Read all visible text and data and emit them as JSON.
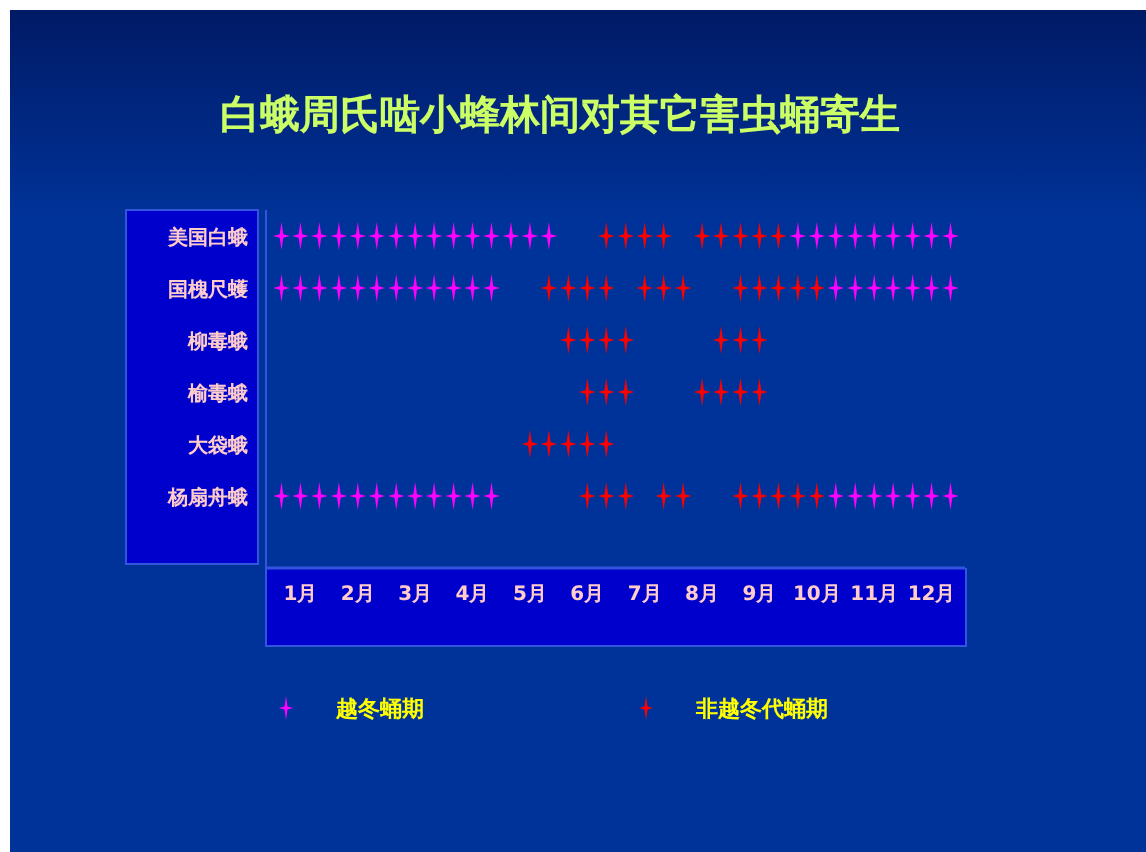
{
  "chart_data": {
    "type": "scatter",
    "orientation": "horizontal",
    "title": "白蛾周氏啮小蜂林间对其它害虫蛹寄生",
    "categories": [
      "美国白蛾",
      "国槐尺蠖",
      "柳毒蛾",
      "榆毒蛾",
      "大袋蛾",
      "杨扇舟蛾"
    ],
    "xlim": [
      0.4,
      12.6
    ],
    "xticks": [
      {
        "value": 1,
        "label": "1月"
      },
      {
        "value": 2,
        "label": "2月"
      },
      {
        "value": 3,
        "label": "3月"
      },
      {
        "value": 4,
        "label": "4月"
      },
      {
        "value": 5,
        "label": "5月"
      },
      {
        "value": 6,
        "label": "6月"
      },
      {
        "value": 7,
        "label": "7月"
      },
      {
        "value": 8,
        "label": "8月"
      },
      {
        "value": 9,
        "label": "9月"
      },
      {
        "value": 10,
        "label": "10月"
      },
      {
        "value": 11,
        "label": "11月"
      },
      {
        "value": 12,
        "label": "12月"
      }
    ],
    "marker": "star",
    "legend": "bottom",
    "series": [
      {
        "name": "越冬蛹期",
        "color": "#ff00ff",
        "values": [
          0.67,
          1,
          1.33,
          1.67,
          2,
          2.33,
          2.67,
          3,
          3.33,
          3.67,
          4,
          4.33,
          4.67,
          5,
          5.33,
          9.67,
          10,
          10.33,
          10.67,
          11,
          11.33,
          11.67,
          12,
          12.33,
          0.67,
          1,
          1.33,
          1.67,
          2,
          2.33,
          2.67,
          3,
          3.33,
          3.67,
          4,
          4.33,
          10.33,
          10.67,
          11,
          11.33,
          11.67,
          12,
          12.33,
          0.67,
          1,
          1.33,
          1.67,
          2,
          2.33,
          2.67,
          3,
          3.33,
          3.67,
          4,
          4.33,
          10.33,
          10.67,
          11,
          11.33,
          11.67,
          12,
          12.33
        ],
        "x": [
          "美国白蛾",
          "美国白蛾",
          "美国白蛾",
          "美国白蛾",
          "美国白蛾",
          "美国白蛾",
          "美国白蛾",
          "美国白蛾",
          "美国白蛾",
          "美国白蛾",
          "美国白蛾",
          "美国白蛾",
          "美国白蛾",
          "美国白蛾",
          "美国白蛾",
          "美国白蛾",
          "美国白蛾",
          "美国白蛾",
          "美国白蛾",
          "美国白蛾",
          "美国白蛾",
          "美国白蛾",
          "美国白蛾",
          "美国白蛾",
          "国槐尺蠖",
          "国槐尺蠖",
          "国槐尺蠖",
          "国槐尺蠖",
          "国槐尺蠖",
          "国槐尺蠖",
          "国槐尺蠖",
          "国槐尺蠖",
          "国槐尺蠖",
          "国槐尺蠖",
          "国槐尺蠖",
          "国槐尺蠖",
          "国槐尺蠖",
          "国槐尺蠖",
          "国槐尺蠖",
          "国槐尺蠖",
          "国槐尺蠖",
          "国槐尺蠖",
          "国槐尺蠖",
          "杨扇舟蛾",
          "杨扇舟蛾",
          "杨扇舟蛾",
          "杨扇舟蛾",
          "杨扇舟蛾",
          "杨扇舟蛾",
          "杨扇舟蛾",
          "杨扇舟蛾",
          "杨扇舟蛾",
          "杨扇舟蛾",
          "杨扇舟蛾",
          "杨扇舟蛾",
          "杨扇舟蛾",
          "杨扇舟蛾",
          "杨扇舟蛾",
          "杨扇舟蛾",
          "杨扇舟蛾",
          "杨扇舟蛾",
          "杨扇舟蛾"
        ]
      },
      {
        "name": "非越冬代蛹期",
        "color": "#ff0000",
        "values": [
          6.33,
          6.67,
          7,
          7.33,
          8,
          8.33,
          8.67,
          9,
          9.33,
          5.33,
          5.67,
          6,
          6.33,
          7,
          7.33,
          7.67,
          8.67,
          9,
          9.33,
          9.67,
          10,
          5.67,
          6,
          6.33,
          6.67,
          8.33,
          8.67,
          9,
          6,
          6.33,
          6.67,
          8,
          8.33,
          8.67,
          9,
          5,
          5.33,
          5.67,
          6,
          6.33,
          6,
          6.33,
          6.67,
          7.33,
          7.67,
          8.67,
          9,
          9.33,
          9.67,
          10
        ],
        "x": [
          "美国白蛾",
          "美国白蛾",
          "美国白蛾",
          "美国白蛾",
          "美国白蛾",
          "美国白蛾",
          "美国白蛾",
          "美国白蛾",
          "美国白蛾",
          "国槐尺蠖",
          "国槐尺蠖",
          "国槐尺蠖",
          "国槐尺蠖",
          "国槐尺蠖",
          "国槐尺蠖",
          "国槐尺蠖",
          "国槐尺蠖",
          "国槐尺蠖",
          "国槐尺蠖",
          "国槐尺蠖",
          "国槐尺蠖",
          "柳毒蛾",
          "柳毒蛾",
          "柳毒蛾",
          "柳毒蛾",
          "柳毒蛾",
          "柳毒蛾",
          "柳毒蛾",
          "榆毒蛾",
          "榆毒蛾",
          "榆毒蛾",
          "榆毒蛾",
          "榆毒蛾",
          "榆毒蛾",
          "榆毒蛾",
          "大袋蛾",
          "大袋蛾",
          "大袋蛾",
          "大袋蛾",
          "大袋蛾",
          "杨扇舟蛾",
          "杨扇舟蛾",
          "杨扇舟蛾",
          "杨扇舟蛾",
          "杨扇舟蛾",
          "杨扇舟蛾",
          "杨扇舟蛾",
          "杨扇舟蛾",
          "杨扇舟蛾",
          "杨扇舟蛾"
        ]
      }
    ]
  }
}
